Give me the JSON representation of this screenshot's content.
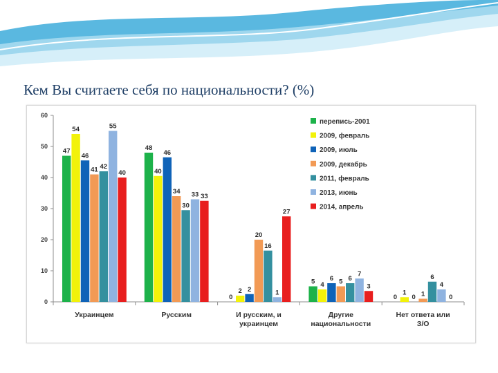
{
  "slide": {
    "title": "Кем Вы считаете себя по национальности? (%)",
    "colors": {
      "title": "#1f3f66",
      "swoosh_light": "#bfe6f5",
      "swoosh_mid": "#7fcbe8",
      "swoosh_dark": "#3aa6d4"
    }
  },
  "chart_data": {
    "type": "bar",
    "title": "",
    "xlabel": "",
    "ylabel": "",
    "ylim": [
      0,
      60
    ],
    "yticks": [
      0,
      10,
      20,
      30,
      40,
      50,
      60
    ],
    "grid": false,
    "legend_position": "top-right",
    "categories": [
      [
        "Украинцем"
      ],
      [
        "Русским"
      ],
      [
        "И русским, и",
        "украинцем"
      ],
      [
        "Другие",
        "национальности"
      ],
      [
        "Нет ответа или",
        "З/О"
      ]
    ],
    "series": [
      {
        "name": "перепись-2001",
        "color": "#1db24a",
        "values": [
          47,
          48,
          0,
          5,
          0
        ]
      },
      {
        "name": "2009, февраль",
        "color": "#f2f20a",
        "values": [
          54,
          40,
          2,
          4,
          1
        ]
      },
      {
        "name": "2009, июль",
        "color": "#0f63b8",
        "values": [
          46,
          46,
          2,
          6,
          0
        ]
      },
      {
        "name": "2009, декабрь",
        "color": "#f29a55",
        "values": [
          41,
          34,
          20,
          5,
          1
        ]
      },
      {
        "name": "2011, февраль",
        "color": "#34909f",
        "values": [
          42,
          30,
          16,
          6,
          6
        ]
      },
      {
        "name": "2013, июнь",
        "color": "#8fb3e0",
        "values": [
          55,
          33,
          1,
          7,
          4
        ]
      },
      {
        "name": "2014, апрель",
        "color": "#e81e1e",
        "values": [
          40,
          33,
          27,
          3,
          0
        ]
      }
    ],
    "bar_heights": [
      [
        47,
        48,
        0,
        5,
        0
      ],
      [
        54,
        40.5,
        2,
        4,
        1.5
      ],
      [
        45.5,
        46.5,
        2.5,
        6,
        0
      ],
      [
        41,
        34,
        20,
        5,
        1
      ],
      [
        42,
        29.5,
        16.5,
        6,
        6.5
      ],
      [
        55,
        33,
        1.5,
        7.5,
        4
      ],
      [
        40,
        32.5,
        27.5,
        3.5,
        0
      ]
    ]
  }
}
